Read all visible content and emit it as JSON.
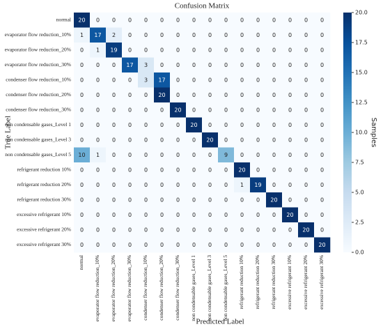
{
  "chart_data": {
    "type": "heatmap",
    "title": "Confusion Matrix",
    "xlabel": "Predicted Label",
    "ylabel": "True Label",
    "colorbar_label": "Samples",
    "cmap": "Blues",
    "clim": [
      0,
      20
    ],
    "cticks": [
      {
        "value": 0,
        "label": "0.0"
      },
      {
        "value": 2.5,
        "label": "2.5"
      },
      {
        "value": 5,
        "label": "5.0"
      },
      {
        "value": 7.5,
        "label": "7.5"
      },
      {
        "value": 10,
        "label": "10.0"
      },
      {
        "value": 12.5,
        "label": "12.5"
      },
      {
        "value": 15,
        "label": "15.0"
      },
      {
        "value": 17.5,
        "label": "17.5"
      },
      {
        "value": 20,
        "label": "20.0"
      }
    ],
    "categories": [
      "normal",
      "evaporator flow reduction_10%",
      "evaporator flow reduction_20%",
      "evaporator flow reduction_30%",
      "condenser flow reduction_10%",
      "condenser flow reduction_20%",
      "condenser flow reduction_30%",
      "non condensable gases_Level 1",
      "non condensable gases_Level 3",
      "non condensable gases_Level 5",
      "refrigerant reduction 10%",
      "refrigerant reduction 20%",
      "refrigerant reduction 30%",
      "excessive refrigerant 10%",
      "excessive refrigerant 20%",
      "excessive refrigerant 30%"
    ],
    "matrix": [
      [
        20,
        0,
        0,
        0,
        0,
        0,
        0,
        0,
        0,
        0,
        0,
        0,
        0,
        0,
        0,
        0
      ],
      [
        1,
        17,
        2,
        0,
        0,
        0,
        0,
        0,
        0,
        0,
        0,
        0,
        0,
        0,
        0,
        0
      ],
      [
        0,
        1,
        19,
        0,
        0,
        0,
        0,
        0,
        0,
        0,
        0,
        0,
        0,
        0,
        0,
        0
      ],
      [
        0,
        0,
        0,
        17,
        3,
        0,
        0,
        0,
        0,
        0,
        0,
        0,
        0,
        0,
        0,
        0
      ],
      [
        0,
        0,
        0,
        0,
        3,
        17,
        0,
        0,
        0,
        0,
        0,
        0,
        0,
        0,
        0,
        0
      ],
      [
        0,
        0,
        0,
        0,
        0,
        20,
        0,
        0,
        0,
        0,
        0,
        0,
        0,
        0,
        0,
        0
      ],
      [
        0,
        0,
        0,
        0,
        0,
        0,
        20,
        0,
        0,
        0,
        0,
        0,
        0,
        0,
        0,
        0
      ],
      [
        0,
        0,
        0,
        0,
        0,
        0,
        0,
        20,
        0,
        0,
        0,
        0,
        0,
        0,
        0,
        0
      ],
      [
        0,
        0,
        0,
        0,
        0,
        0,
        0,
        0,
        20,
        0,
        0,
        0,
        0,
        0,
        0,
        0
      ],
      [
        10,
        1,
        0,
        0,
        0,
        0,
        0,
        0,
        0,
        9,
        0,
        0,
        0,
        0,
        0,
        0
      ],
      [
        0,
        0,
        0,
        0,
        0,
        0,
        0,
        0,
        0,
        0,
        20,
        0,
        0,
        0,
        0,
        0
      ],
      [
        0,
        0,
        0,
        0,
        0,
        0,
        0,
        0,
        0,
        0,
        1,
        19,
        0,
        0,
        0,
        0
      ],
      [
        0,
        0,
        0,
        0,
        0,
        0,
        0,
        0,
        0,
        0,
        0,
        0,
        20,
        0,
        0,
        0
      ],
      [
        0,
        0,
        0,
        0,
        0,
        0,
        0,
        0,
        0,
        0,
        0,
        0,
        0,
        20,
        0,
        0
      ],
      [
        0,
        0,
        0,
        0,
        0,
        0,
        0,
        0,
        0,
        0,
        0,
        0,
        0,
        0,
        20,
        0
      ],
      [
        0,
        0,
        0,
        0,
        0,
        0,
        0,
        0,
        0,
        0,
        0,
        0,
        0,
        0,
        0,
        20
      ]
    ]
  }
}
